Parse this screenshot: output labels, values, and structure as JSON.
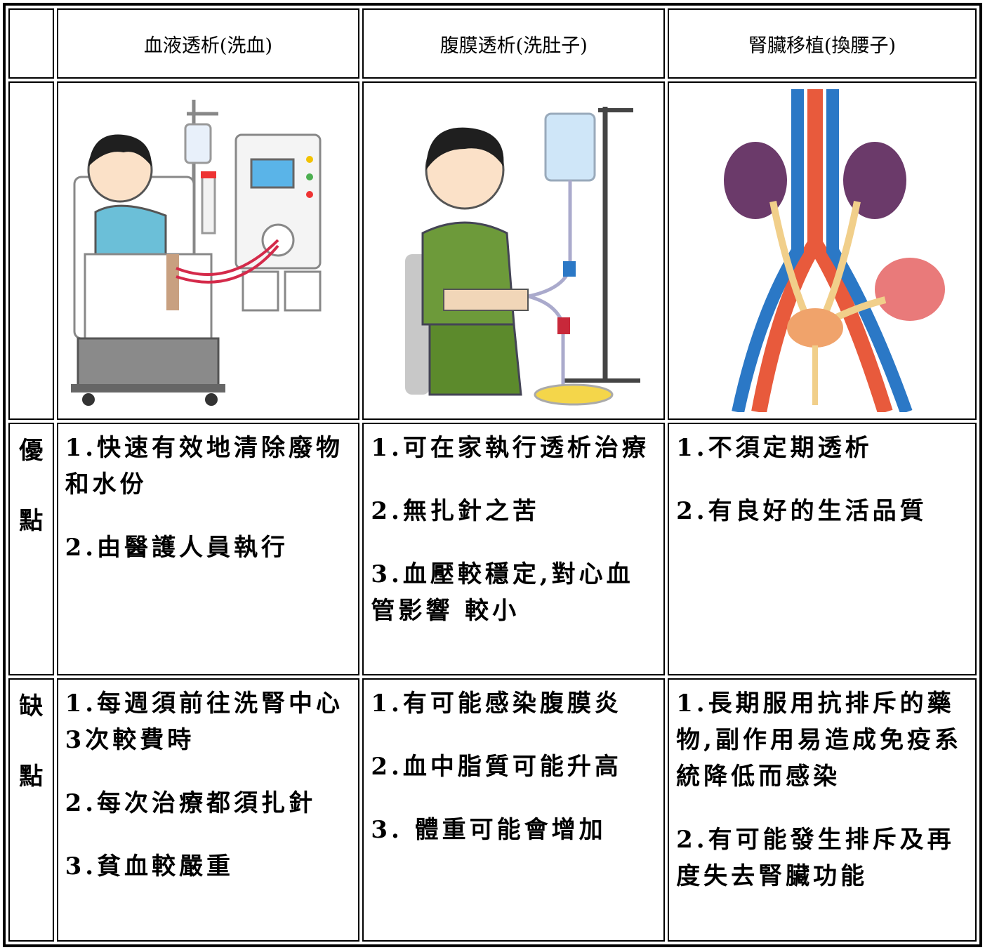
{
  "table": {
    "columns": [
      "血液透析(洗血)",
      "腹膜透析(洗肚子)",
      "腎臟移植(換腰子)"
    ],
    "rows": [
      {
        "label": "優點",
        "cells": [
          [
            "1.快速有效地清除廢物和水份",
            "2.由醫護人員執行"
          ],
          [
            "1.可在家執行透析治療",
            "2.無扎針之苦",
            "3.血壓較穩定,對心血管影響 較小"
          ],
          [
            "1.不須定期透析",
            "2.有良好的生活品質"
          ]
        ]
      },
      {
        "label": "缺點",
        "cells": [
          [
            "1.每週須前往洗腎中心3次較費時",
            "2.每次治療都須扎針",
            "3.貧血較嚴重"
          ],
          [
            "1.有可能感染腹膜炎",
            "2.血中脂質可能升高",
            "3. 體重可能會增加"
          ],
          [
            "1.長期服用抗排斥的藥物,副作用易造成免疫系統降低而感染",
            "2.有可能發生排斥及再度失去腎臟功能"
          ]
        ]
      }
    ]
  }
}
